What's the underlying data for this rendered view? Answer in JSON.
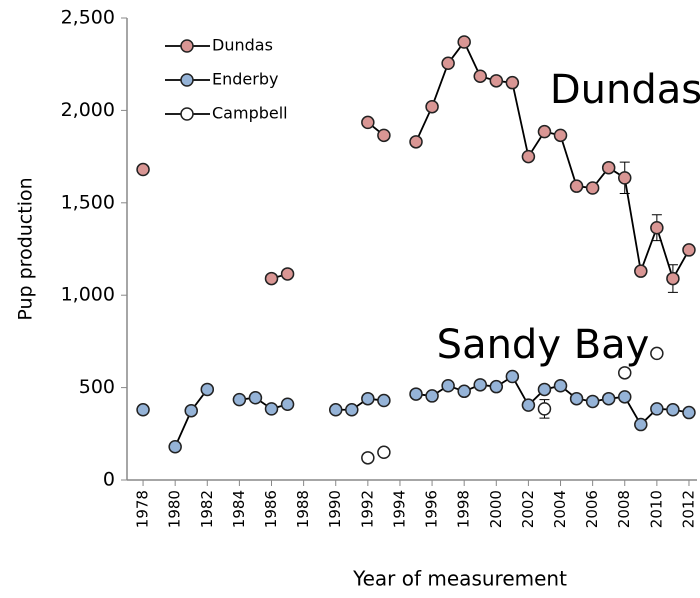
{
  "chart_data": {
    "type": "line",
    "x_label": "Year of measurement",
    "y_label": "Pup production",
    "annotations": [
      "Dundas",
      "Sandy Bay"
    ],
    "x": [
      1978,
      1979,
      1980,
      1981,
      1982,
      1983,
      1984,
      1985,
      1986,
      1987,
      1988,
      1989,
      1990,
      1991,
      1992,
      1993,
      1994,
      1995,
      1996,
      1997,
      1998,
      1999,
      2000,
      2001,
      2002,
      2003,
      2004,
      2005,
      2006,
      2007,
      2008,
      2009,
      2010,
      2011,
      2012
    ],
    "series": [
      {
        "name": "Dundas",
        "color": "#d99694",
        "line": true,
        "values": [
          1680,
          null,
          null,
          null,
          null,
          null,
          null,
          null,
          1090,
          1115,
          null,
          null,
          null,
          null,
          1935,
          1865,
          null,
          1830,
          2020,
          2255,
          2370,
          2185,
          2160,
          2150,
          1750,
          1885,
          1865,
          1590,
          1580,
          1690,
          1635,
          1130,
          1365,
          1090,
          1245
        ],
        "errors": [
          null,
          null,
          null,
          null,
          null,
          null,
          null,
          null,
          null,
          null,
          null,
          null,
          null,
          null,
          null,
          null,
          null,
          null,
          null,
          null,
          null,
          null,
          null,
          null,
          null,
          null,
          null,
          null,
          null,
          null,
          85,
          null,
          70,
          75,
          null
        ]
      },
      {
        "name": "Enderby",
        "color": "#95b3d7",
        "line": true,
        "values": [
          380,
          null,
          180,
          375,
          490,
          null,
          435,
          445,
          385,
          410,
          null,
          null,
          380,
          380,
          440,
          430,
          null,
          465,
          455,
          510,
          480,
          515,
          505,
          560,
          405,
          490,
          510,
          440,
          425,
          440,
          450,
          300,
          385,
          380,
          365
        ]
      },
      {
        "name": "Campbell",
        "color": "#ffffff",
        "line": false,
        "values": [
          null,
          null,
          null,
          null,
          null,
          null,
          null,
          null,
          null,
          null,
          null,
          null,
          null,
          null,
          120,
          150,
          null,
          null,
          null,
          null,
          null,
          null,
          null,
          null,
          null,
          385,
          null,
          null,
          null,
          null,
          580,
          null,
          685,
          null,
          null
        ],
        "errors": [
          null,
          null,
          null,
          null,
          null,
          null,
          null,
          null,
          null,
          null,
          null,
          null,
          null,
          null,
          null,
          null,
          null,
          null,
          null,
          null,
          null,
          null,
          null,
          null,
          null,
          50,
          null,
          null,
          null,
          null,
          null,
          null,
          null,
          null,
          null
        ]
      }
    ],
    "xlim": [
      1977,
      2012.5
    ],
    "xticks": [
      1978,
      1980,
      1982,
      1984,
      1986,
      1988,
      1990,
      1992,
      1994,
      1996,
      1998,
      2000,
      2002,
      2004,
      2006,
      2008,
      2010,
      2012
    ],
    "ylim": [
      0,
      2500
    ],
    "yticks": [
      0,
      {
        "value": 500,
        "label": "500"
      },
      {
        "value": 1000,
        "label": "1,000"
      },
      {
        "value": 1500,
        "label": "1,500"
      },
      {
        "value": 2000,
        "label": "2,000"
      },
      {
        "value": 2500,
        "label": "2,500"
      }
    ],
    "grid": false,
    "legend": "upper left"
  }
}
